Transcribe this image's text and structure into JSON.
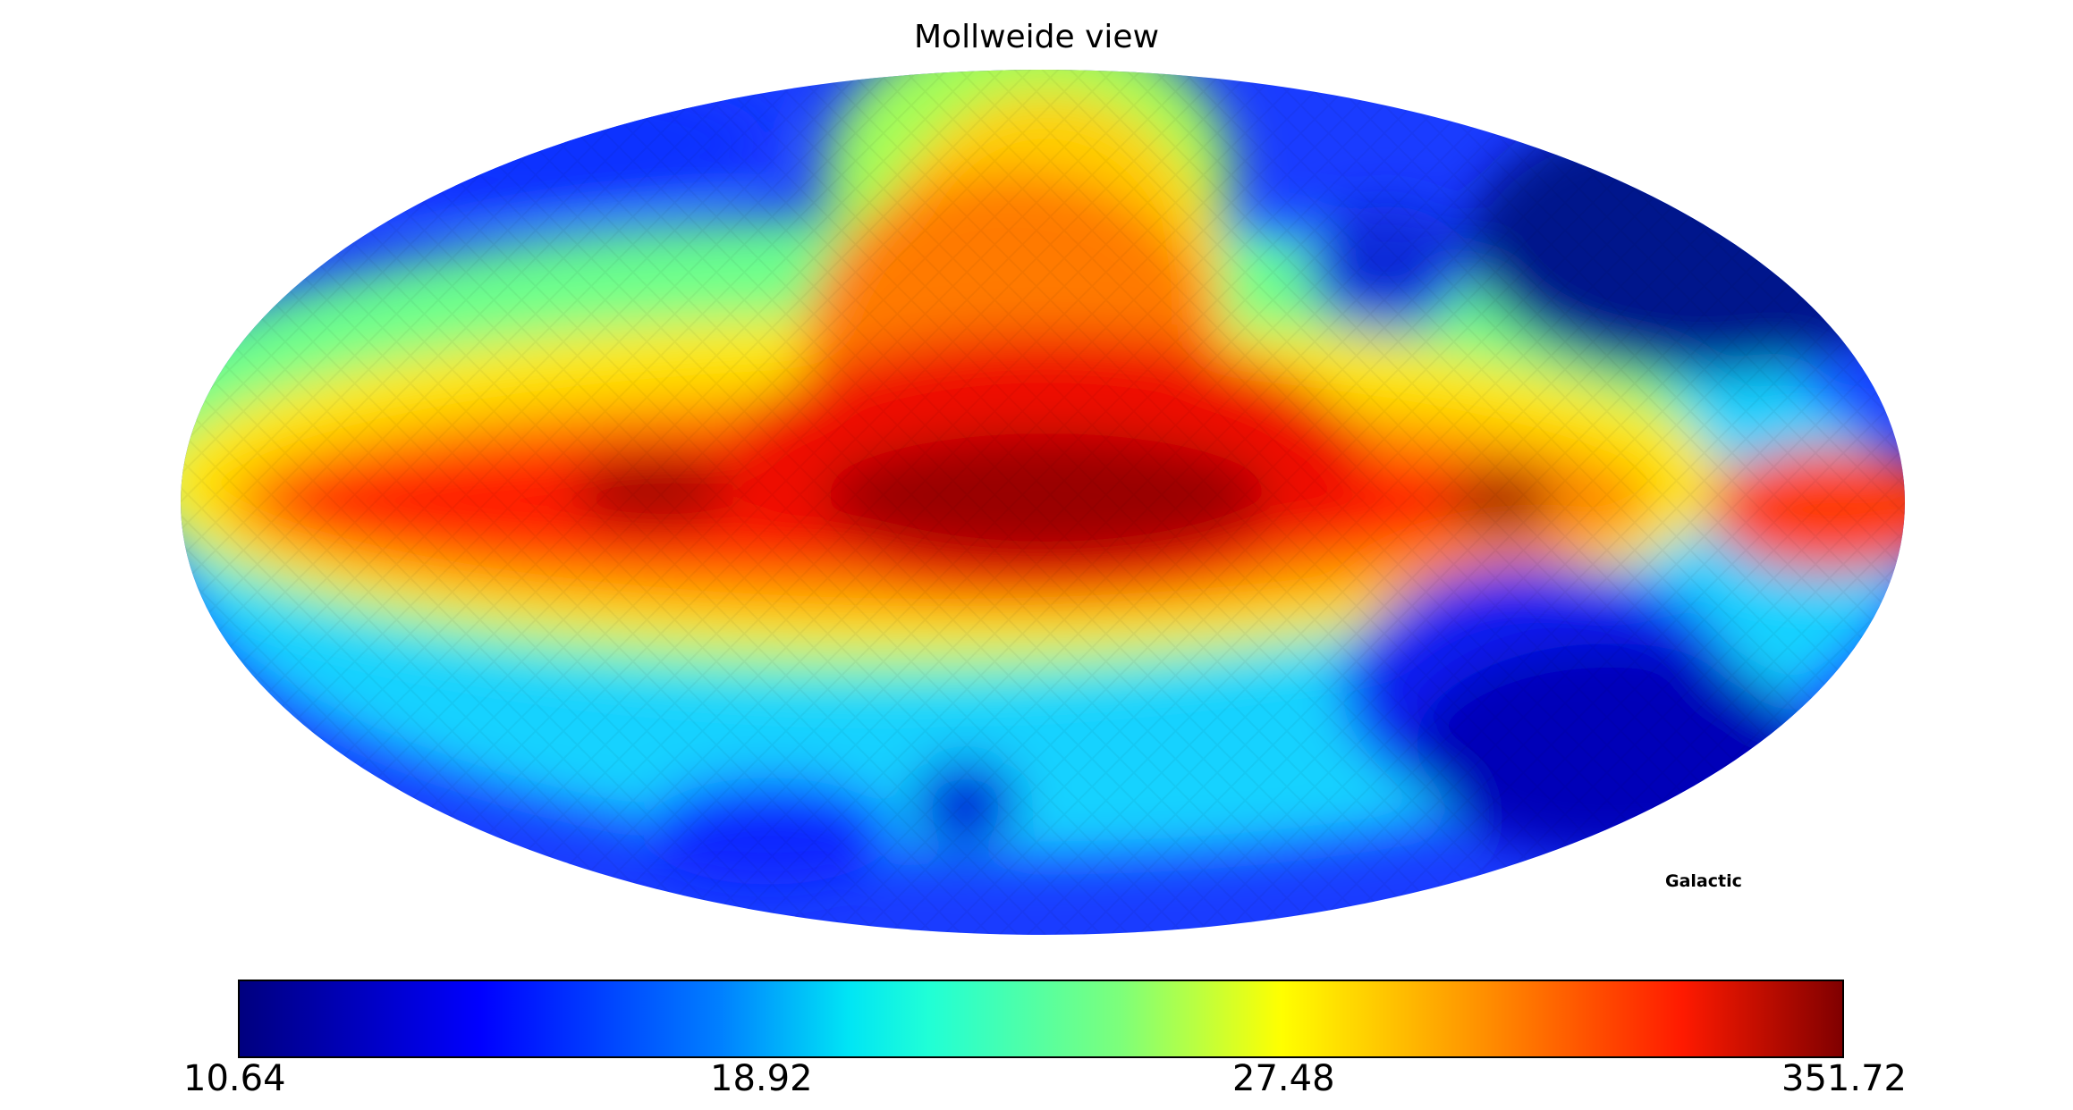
{
  "title": "Mollweide view",
  "coordinate_system_label": "Galactic",
  "projection": "mollweide",
  "colormap": "jet",
  "colorbar": {
    "min": "10.64",
    "ticks": [
      "10.64",
      "18.92",
      "27.48",
      "351.72"
    ],
    "max": "351.72",
    "colors": [
      "#00007f",
      "#0000ff",
      "#0080ff",
      "#00e5f5",
      "#20ffd6",
      "#7dff7a",
      "#ffff00",
      "#ff8c00",
      "#ff1a00",
      "#800000"
    ]
  }
}
